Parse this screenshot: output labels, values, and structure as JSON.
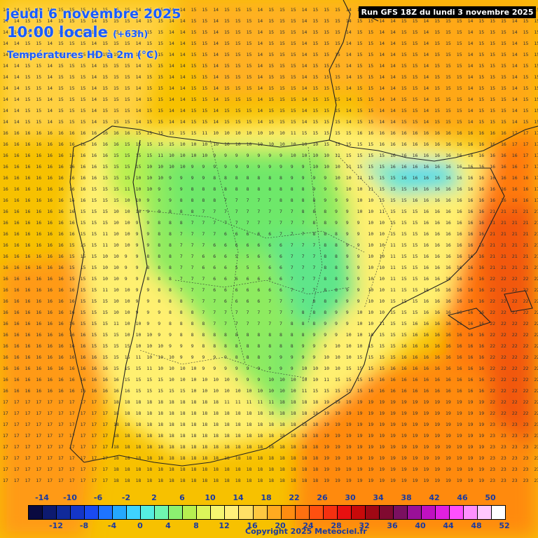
{
  "header": {
    "date_line": "jeudi 6 novembre 2025",
    "time_line": "10:00 locale",
    "offset": "(+63h)",
    "parameter": "Températures HD à 2m (°C)"
  },
  "run_info": "Run GFS 18Z du lundi 3 novembre 2025",
  "legend": {
    "top_ticks": [
      "-14",
      "-10",
      "-6",
      "-2",
      "2",
      "6",
      "10",
      "14",
      "18",
      "22",
      "26",
      "30",
      "34",
      "38",
      "42",
      "46",
      "50"
    ],
    "bottom_ticks": [
      "-12",
      "-8",
      "-4",
      "0",
      "4",
      "8",
      "12",
      "16",
      "20",
      "24",
      "28",
      "32",
      "36",
      "40",
      "44",
      "48",
      "52"
    ],
    "colors": [
      "#0a0a40",
      "#0d1a70",
      "#102a9a",
      "#1436c8",
      "#1a4af0",
      "#1e74ff",
      "#25a8ff",
      "#3fd2ff",
      "#55eee0",
      "#6ff5b0",
      "#8cf070",
      "#b7f050",
      "#dcf55a",
      "#f5f570",
      "#fff07a",
      "#ffe066",
      "#ffc840",
      "#ffaa20",
      "#ff8c10",
      "#ff7010",
      "#ff5010",
      "#f53010",
      "#e81010",
      "#c80a0a",
      "#a00814",
      "#800a30",
      "#7a1060",
      "#9a1098",
      "#c010c0",
      "#e020e0",
      "#ff50ff",
      "#ff90ff",
      "#ffc8ff",
      "#ffffff"
    ]
  },
  "copyright": "Copyright 2025 Meteociel.fr"
}
